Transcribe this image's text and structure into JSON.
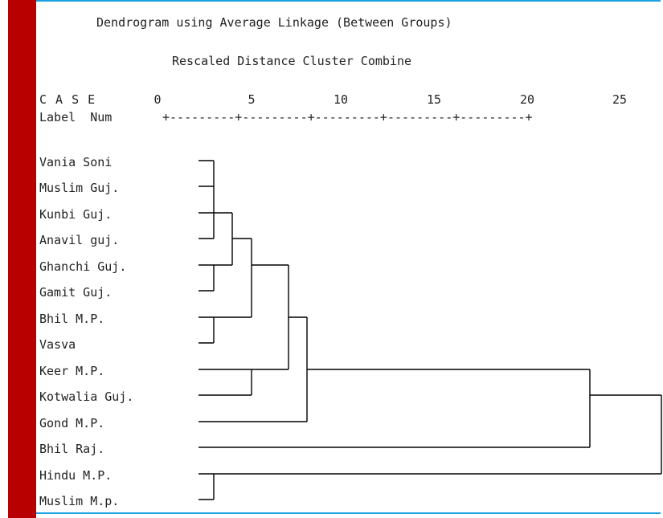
{
  "header": {
    "title": "Dendrogram using Average Linkage (Between Groups)",
    "subtitle": "Rescaled Distance Cluster Combine",
    "case_label": "C A S E",
    "label_num": "Label  Num",
    "ruler": "+---------+---------+---------+---------+---------+"
  },
  "axis": {
    "ticks": [
      "0",
      "5",
      "10",
      "15",
      "20",
      "25"
    ]
  },
  "cases": [
    "Vania Soni",
    "Muslim Guj.",
    "Kunbi Guj.",
    "Anavil guj.",
    "Ghanchi Guj.",
    "Gamit Guj.",
    "Bhil M.P.",
    "Vasva",
    "Keer M.P.",
    "Kotwalia Guj.",
    "Gond M.P.",
    "Bhil Raj.",
    "Hindu M.P.",
    "Muslim M.p."
  ],
  "colors": {
    "sidebar": "#b90000",
    "border": "#1ba1e2",
    "line": "#000000"
  }
}
